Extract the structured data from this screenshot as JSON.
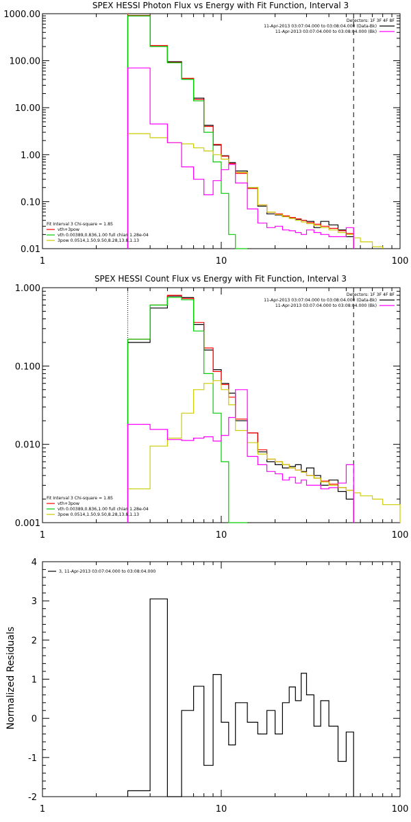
{
  "chart_data": [
    {
      "type": "line",
      "title": "SPEX HESSI Photon Flux vs Energy with Fit Function, Interval 3",
      "xlabel": "",
      "ylabel": "",
      "xscale": "log",
      "yscale": "log",
      "xlim": [
        1,
        100
      ],
      "ylim": [
        0.01,
        1000
      ],
      "xticks": [
        "1",
        "10",
        "100"
      ],
      "yticks": [
        "0.01",
        "0.10",
        "1.00",
        "10.00",
        "100.00",
        "1000.00"
      ],
      "legend_top_right": {
        "header": "Detectors: 1F 3F 4F 8F",
        "lines": [
          {
            "text": "11-Apr-2013 03:07:04.000 to 03:08:04.000 (Data-Bk)",
            "color": "#000000"
          },
          {
            "text": "11-Apr-2013 03:07:04.000 to 03:08:04.000 (Bk)",
            "color": "#ff00ff"
          }
        ]
      },
      "legend_bottom_left": {
        "header": "Fit Interval 3   Chi-square = 1.85",
        "lines": [
          {
            "text": "vth+3pow",
            "color": "#ff0000"
          },
          {
            "text": "vth 0.00389,0.836,1.00   full chian 1.28e-04",
            "color": "#00cc00"
          },
          {
            "text": "3pow 0.0514,1.50,9.50,8.28,13.8,1.13",
            "color": "#cccc00"
          }
        ]
      },
      "vlines": [
        {
          "x": 3,
          "style": "dotted",
          "color": "#ff8800"
        },
        {
          "x": 55,
          "style": "dashed",
          "color": "#000000"
        }
      ],
      "edges": [
        3,
        4,
        5,
        6,
        7,
        8,
        9,
        10,
        11,
        12,
        14,
        16,
        18,
        20,
        22,
        24,
        26,
        28,
        30,
        33,
        36,
        40,
        45,
        50,
        55,
        60,
        70,
        80,
        100
      ],
      "series": [
        {
          "name": "Data-Bk",
          "color": "#000000",
          "values": [
            900,
            200,
            95,
            40,
            16,
            4.2,
            1.6,
            0.95,
            0.68,
            0.45,
            0.2,
            0.08,
            0.055,
            0.052,
            0.048,
            0.045,
            0.042,
            0.04,
            0.038,
            0.028,
            0.038,
            0.032,
            0.025,
            0.018,
            null,
            null,
            null,
            null
          ]
        },
        {
          "name": "vth+3pow",
          "color": "#ff0000",
          "values": [
            920,
            210,
            92,
            42,
            15,
            4.0,
            1.65,
            0.93,
            0.65,
            0.4,
            0.19,
            0.085,
            0.06,
            0.055,
            0.05,
            0.046,
            0.043,
            0.04,
            0.036,
            0.033,
            0.03,
            0.027,
            0.024,
            0.021,
            null,
            null,
            null,
            null
          ]
        },
        {
          "name": "vth",
          "color": "#00cc00",
          "values": [
            900,
            200,
            90,
            40,
            14,
            3.0,
            0.7,
            0.15,
            0.02,
            0.009,
            null,
            null,
            null,
            null,
            null,
            null,
            null,
            null,
            null,
            null,
            null,
            null,
            null,
            null,
            null,
            null,
            null,
            null
          ]
        },
        {
          "name": "3pow",
          "color": "#cccc00",
          "values": [
            2.8,
            2.3,
            1.8,
            1.7,
            1.4,
            1.2,
            1.0,
            0.8,
            0.62,
            0.42,
            0.2,
            0.085,
            0.06,
            0.053,
            0.048,
            0.044,
            0.04,
            0.037,
            0.034,
            0.031,
            0.028,
            0.025,
            0.022,
            0.02,
            0.017,
            0.014,
            0.011,
            null
          ]
        },
        {
          "name": "Bk",
          "color": "#ff00ff",
          "values": [
            70,
            4.5,
            1.8,
            0.55,
            0.3,
            0.14,
            0.28,
            0.48,
            0.62,
            0.25,
            0.07,
            0.035,
            0.028,
            0.03,
            0.025,
            0.024,
            0.022,
            0.02,
            0.025,
            0.022,
            0.02,
            0.018,
            0.018,
            0.028,
            null,
            null,
            null,
            null
          ]
        }
      ]
    },
    {
      "type": "line",
      "title": "SPEX HESSI Count Flux vs Energy with Fit Function, Interval 3",
      "xlabel": "",
      "ylabel": "",
      "xscale": "log",
      "yscale": "log",
      "xlim": [
        1,
        100
      ],
      "ylim": [
        0.001,
        1
      ],
      "xticks": [
        "1",
        "10",
        "100"
      ],
      "yticks": [
        "0.001",
        "0.010",
        "0.100",
        "1.000"
      ],
      "legend_top_right": {
        "header": "Detectors: 1F 3F 4F 8F",
        "lines": [
          {
            "text": "11-Apr-2013 03:07:04.000 to 03:08:04.000 (Data-Bk)",
            "color": "#000000"
          },
          {
            "text": "11-Apr-2013 03:07:04.000 to 03:08:04.000 (Bk)",
            "color": "#ff00ff"
          }
        ]
      },
      "legend_bottom_left": {
        "header": "Fit Interval 3   Chi-square = 1.85",
        "lines": [
          {
            "text": "vth+3pow",
            "color": "#ff0000"
          },
          {
            "text": "vth 0.00389,0.836,1.00   full chian 1.28e-04",
            "color": "#00cc00"
          },
          {
            "text": "3pow 0.0514,1.50,9.50,8.28,13.8,1.13",
            "color": "#cccc00"
          }
        ]
      },
      "vlines": [
        {
          "x": 3,
          "style": "dotted",
          "color": "#000000"
        },
        {
          "x": 55,
          "style": "dashed",
          "color": "#000000"
        }
      ],
      "edges": [
        3,
        4,
        5,
        6,
        7,
        8,
        9,
        10,
        11,
        12,
        14,
        16,
        18,
        20,
        22,
        24,
        26,
        28,
        30,
        33,
        36,
        40,
        45,
        50,
        55,
        60,
        70,
        80,
        100
      ],
      "series": [
        {
          "name": "Data-Bk",
          "color": "#000000",
          "values": [
            0.2,
            0.55,
            0.78,
            0.75,
            0.34,
            0.16,
            0.09,
            0.06,
            0.045,
            0.02,
            0.014,
            0.008,
            0.006,
            0.0055,
            0.005,
            0.0052,
            0.0055,
            0.0045,
            0.005,
            0.004,
            0.003,
            0.0035,
            0.0025,
            0.002,
            null,
            null,
            null,
            null
          ]
        },
        {
          "name": "vth+3pow",
          "color": "#ff0000",
          "values": [
            0.22,
            0.6,
            0.8,
            0.73,
            0.36,
            0.17,
            0.085,
            0.058,
            0.04,
            0.021,
            0.014,
            0.0085,
            0.0065,
            0.006,
            0.0055,
            0.005,
            0.0047,
            0.0044,
            0.004,
            0.0037,
            0.0034,
            0.0031,
            0.0028,
            0.0026,
            null,
            null,
            null,
            null
          ]
        },
        {
          "name": "vth",
          "color": "#00cc00",
          "values": [
            0.22,
            0.6,
            0.75,
            0.7,
            0.28,
            0.08,
            0.025,
            0.006,
            0.001,
            0.0005,
            null,
            null,
            null,
            null,
            null,
            null,
            null,
            null,
            null,
            null,
            null,
            null,
            null,
            null,
            null,
            null,
            null,
            null
          ]
        },
        {
          "name": "3pow",
          "color": "#cccc00",
          "values": [
            0.0027,
            0.0095,
            0.012,
            0.025,
            0.05,
            0.06,
            0.065,
            0.05,
            0.032,
            0.015,
            0.0105,
            0.0075,
            0.0065,
            0.006,
            0.0055,
            0.005,
            0.0047,
            0.0044,
            0.004,
            0.0037,
            0.0033,
            0.003,
            0.0028,
            0.0026,
            0.0024,
            0.0022,
            0.002,
            0.0017
          ]
        },
        {
          "name": "Bk",
          "color": "#ff00ff",
          "values": [
            0.018,
            0.0155,
            0.0115,
            0.0112,
            0.012,
            0.0125,
            0.011,
            0.013,
            0.022,
            0.05,
            0.007,
            0.0055,
            0.0045,
            0.0042,
            0.0035,
            0.0038,
            0.0032,
            0.0035,
            0.003,
            0.003,
            0.0027,
            0.0028,
            0.0032,
            0.0055,
            null,
            null,
            null,
            null
          ]
        }
      ]
    },
    {
      "type": "line",
      "title": "",
      "xlabel": "",
      "ylabel": "Normalized Residuals",
      "xscale": "log",
      "yscale": "linear",
      "xlim": [
        1,
        100
      ],
      "ylim": [
        -2,
        4
      ],
      "xticks": [
        "1",
        "10",
        "100"
      ],
      "yticks": [
        "-2",
        "-1",
        "0",
        "1",
        "2",
        "3",
        "4"
      ],
      "legend_top_left": {
        "lines": [
          {
            "text": "3, 11-Apr-2013 03:07:04.000 to 03:08:04.000",
            "color": "#000000"
          }
        ]
      },
      "edges": [
        3,
        4,
        5,
        6,
        7,
        8,
        9,
        10,
        11,
        12,
        14,
        16,
        18,
        20,
        22,
        24,
        26,
        28,
        30,
        33,
        36,
        40,
        45,
        50,
        55
      ],
      "series": [
        {
          "name": "",
          "color": "#000000",
          "values": [
            -1.85,
            3.05,
            -2.05,
            0.2,
            0.82,
            -1.2,
            1.12,
            -0.1,
            -0.68,
            0.4,
            -0.1,
            -0.4,
            0.2,
            -0.4,
            0.4,
            0.8,
            0.45,
            1.15,
            0.6,
            -0.2,
            0.45,
            -0.2,
            -1.1,
            -0.35
          ]
        }
      ]
    }
  ]
}
